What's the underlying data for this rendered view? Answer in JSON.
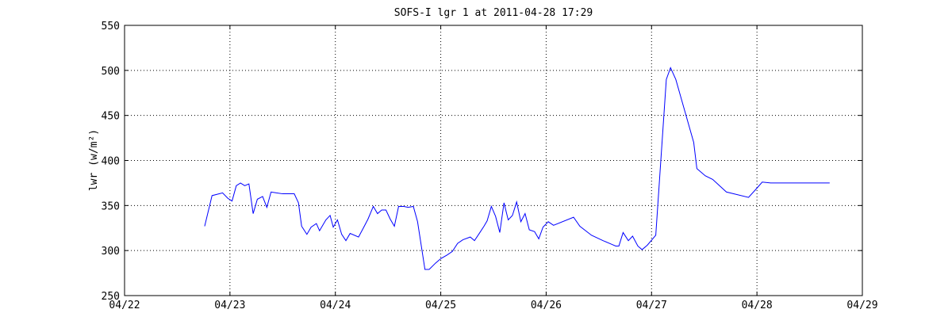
{
  "chart_data": {
    "type": "line",
    "title": "SOFS-I lgr 1 at 2011-04-28 17:29",
    "y_label": "lwr (w/m²)",
    "xlim": [
      22,
      29
    ],
    "xticks": [
      {
        "value": 22,
        "label": "04/22"
      },
      {
        "value": 23,
        "label": "04/23"
      },
      {
        "value": 24,
        "label": "04/24"
      },
      {
        "value": 25,
        "label": "04/25"
      },
      {
        "value": 26,
        "label": "04/26"
      },
      {
        "value": 27,
        "label": "04/27"
      },
      {
        "value": 28,
        "label": "04/28"
      },
      {
        "value": 29,
        "label": "04/29"
      }
    ],
    "ylim": [
      250,
      550
    ],
    "yticks": [
      250,
      300,
      350,
      400,
      450,
      500,
      550
    ],
    "grid": true,
    "series": [
      {
        "color": "#0000ff",
        "x": [
          22.76,
          22.83,
          22.93,
          22.98,
          23.02,
          23.06,
          23.1,
          23.14,
          23.18,
          23.22,
          23.26,
          23.31,
          23.35,
          23.39,
          23.44,
          23.5,
          23.61,
          23.65,
          23.68,
          23.73,
          23.77,
          23.82,
          23.85,
          23.91,
          23.95,
          23.98,
          24.02,
          24.06,
          24.1,
          24.14,
          24.22,
          24.27,
          24.31,
          24.36,
          24.4,
          24.44,
          24.48,
          24.52,
          24.56,
          24.6,
          24.65,
          24.69,
          24.74,
          24.78,
          24.85,
          24.89,
          24.95,
          25.0,
          25.06,
          25.11,
          25.16,
          25.21,
          25.28,
          25.32,
          25.36,
          25.41,
          25.44,
          25.48,
          25.52,
          25.56,
          25.6,
          25.64,
          25.68,
          25.72,
          25.76,
          25.8,
          25.84,
          25.89,
          25.93,
          25.97,
          26.02,
          26.07,
          26.26,
          26.32,
          26.43,
          26.54,
          26.62,
          26.66,
          26.69,
          26.73,
          26.78,
          26.82,
          26.87,
          26.91,
          26.96,
          27.04,
          27.14,
          27.18,
          27.23,
          27.4,
          27.43,
          27.51,
          27.58,
          27.71,
          27.92,
          27.99,
          28.05,
          28.13,
          28.69
        ],
        "values": [
          327,
          361,
          364,
          358,
          355,
          372,
          375,
          372,
          374,
          341,
          357,
          360,
          348,
          365,
          364,
          363,
          363,
          353,
          327,
          318,
          326,
          330,
          322,
          334,
          339,
          326,
          334,
          318,
          311,
          319,
          315,
          326,
          335,
          349,
          341,
          345,
          345,
          335,
          327,
          349,
          349,
          348,
          349,
          332,
          279,
          279,
          286,
          291,
          295,
          299,
          308,
          312,
          315,
          311,
          318,
          327,
          333,
          349,
          338,
          320,
          353,
          334,
          339,
          354,
          332,
          341,
          323,
          321,
          313,
          326,
          332,
          328,
          337,
          327,
          317,
          311,
          307,
          305,
          305,
          320,
          311,
          316,
          305,
          301,
          306,
          317,
          490,
          503,
          490,
          420,
          391,
          383,
          379,
          365,
          359,
          368,
          376,
          375,
          375
        ]
      }
    ]
  }
}
